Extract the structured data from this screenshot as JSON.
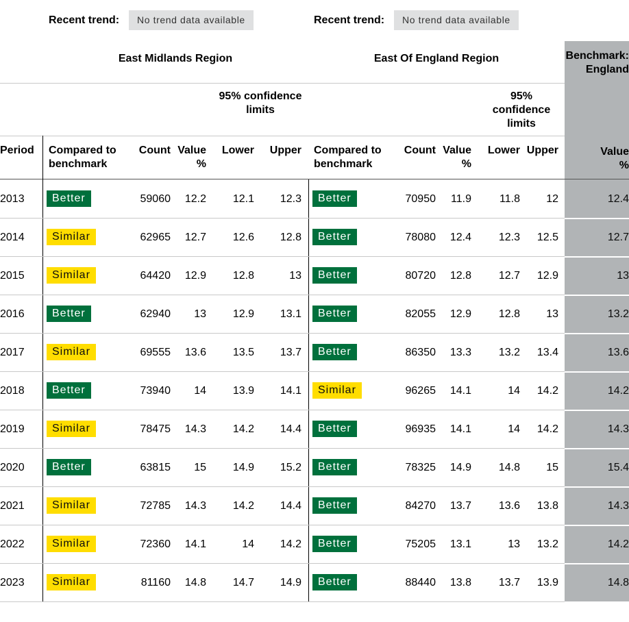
{
  "trend": {
    "left_label": "Recent trend:",
    "left_value": "No trend data available",
    "right_label": "Recent trend:",
    "right_value": "No trend data available"
  },
  "headers": {
    "region_a": "East Midlands Region",
    "region_b": "East Of England Region",
    "benchmark_line1": "Benchmark:",
    "benchmark_line2": "England",
    "ci_a_line1": "95% confidence",
    "ci_a_line2": "limits",
    "ci_b_line1": "95%",
    "ci_b_line2": "confidence",
    "ci_b_line3": "limits",
    "period": "Period",
    "compared_line1": "Compared to",
    "compared_line2": "benchmark",
    "count": "Count",
    "value_line1": "Value",
    "value_line2": "%",
    "lower": "Lower",
    "upper": "Upper"
  },
  "status_colors": {
    "Better": "#00703c",
    "Similar": "#ffdd00"
  },
  "rows": [
    {
      "period": "2013",
      "a": {
        "status": "Better",
        "count": "59060",
        "value": "12.2",
        "lower": "12.1",
        "upper": "12.3"
      },
      "b": {
        "status": "Better",
        "count": "70950",
        "value": "11.9",
        "lower": "11.8",
        "upper": "12"
      },
      "benchmark": "12.4"
    },
    {
      "period": "2014",
      "a": {
        "status": "Similar",
        "count": "62965",
        "value": "12.7",
        "lower": "12.6",
        "upper": "12.8"
      },
      "b": {
        "status": "Better",
        "count": "78080",
        "value": "12.4",
        "lower": "12.3",
        "upper": "12.5"
      },
      "benchmark": "12.7"
    },
    {
      "period": "2015",
      "a": {
        "status": "Similar",
        "count": "64420",
        "value": "12.9",
        "lower": "12.8",
        "upper": "13"
      },
      "b": {
        "status": "Better",
        "count": "80720",
        "value": "12.8",
        "lower": "12.7",
        "upper": "12.9"
      },
      "benchmark": "13"
    },
    {
      "period": "2016",
      "a": {
        "status": "Better",
        "count": "62940",
        "value": "13",
        "lower": "12.9",
        "upper": "13.1"
      },
      "b": {
        "status": "Better",
        "count": "82055",
        "value": "12.9",
        "lower": "12.8",
        "upper": "13"
      },
      "benchmark": "13.2"
    },
    {
      "period": "2017",
      "a": {
        "status": "Similar",
        "count": "69555",
        "value": "13.6",
        "lower": "13.5",
        "upper": "13.7"
      },
      "b": {
        "status": "Better",
        "count": "86350",
        "value": "13.3",
        "lower": "13.2",
        "upper": "13.4"
      },
      "benchmark": "13.6"
    },
    {
      "period": "2018",
      "a": {
        "status": "Better",
        "count": "73940",
        "value": "14",
        "lower": "13.9",
        "upper": "14.1"
      },
      "b": {
        "status": "Similar",
        "count": "96265",
        "value": "14.1",
        "lower": "14",
        "upper": "14.2"
      },
      "benchmark": "14.2"
    },
    {
      "period": "2019",
      "a": {
        "status": "Similar",
        "count": "78475",
        "value": "14.3",
        "lower": "14.2",
        "upper": "14.4"
      },
      "b": {
        "status": "Better",
        "count": "96935",
        "value": "14.1",
        "lower": "14",
        "upper": "14.2"
      },
      "benchmark": "14.3"
    },
    {
      "period": "2020",
      "a": {
        "status": "Better",
        "count": "63815",
        "value": "15",
        "lower": "14.9",
        "upper": "15.2"
      },
      "b": {
        "status": "Better",
        "count": "78325",
        "value": "14.9",
        "lower": "14.8",
        "upper": "15"
      },
      "benchmark": "15.4"
    },
    {
      "period": "2021",
      "a": {
        "status": "Similar",
        "count": "72785",
        "value": "14.3",
        "lower": "14.2",
        "upper": "14.4"
      },
      "b": {
        "status": "Better",
        "count": "84270",
        "value": "13.7",
        "lower": "13.6",
        "upper": "13.8"
      },
      "benchmark": "14.3"
    },
    {
      "period": "2022",
      "a": {
        "status": "Similar",
        "count": "72360",
        "value": "14.1",
        "lower": "14",
        "upper": "14.2"
      },
      "b": {
        "status": "Better",
        "count": "75205",
        "value": "13.1",
        "lower": "13",
        "upper": "13.2"
      },
      "benchmark": "14.2"
    },
    {
      "period": "2023",
      "a": {
        "status": "Similar",
        "count": "81160",
        "value": "14.8",
        "lower": "14.7",
        "upper": "14.9"
      },
      "b": {
        "status": "Better",
        "count": "88440",
        "value": "13.8",
        "lower": "13.7",
        "upper": "13.9"
      },
      "benchmark": "14.8"
    }
  ]
}
